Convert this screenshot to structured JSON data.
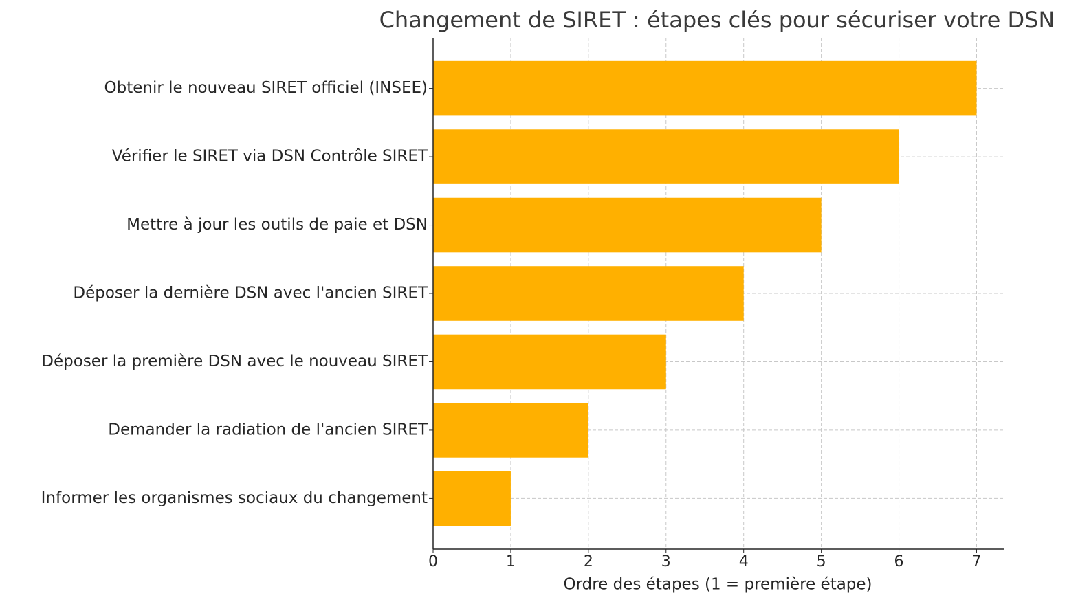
{
  "chart_data": {
    "type": "barh",
    "title": "Changement de SIRET : étapes clés pour sécuriser votre DSN",
    "xlabel": "Ordre des étapes (1 = première étape)",
    "categories": [
      "Obtenir le nouveau SIRET officiel (INSEE)",
      "Vérifier le SIRET via DSN Contrôle SIRET",
      "Mettre à jour les outils de paie et DSN",
      "Déposer la dernière DSN avec l'ancien SIRET",
      "Déposer la première DSN avec le nouveau SIRET",
      "Demander la radiation de l'ancien SIRET",
      "Informer les organismes sociaux du changement"
    ],
    "values": [
      7,
      6,
      5,
      4,
      3,
      2,
      1
    ],
    "color": "#ffb000",
    "xlim": [
      0,
      7.35
    ],
    "xticks": [
      0,
      1,
      2,
      3,
      4,
      5,
      6,
      7
    ],
    "grid": true
  }
}
